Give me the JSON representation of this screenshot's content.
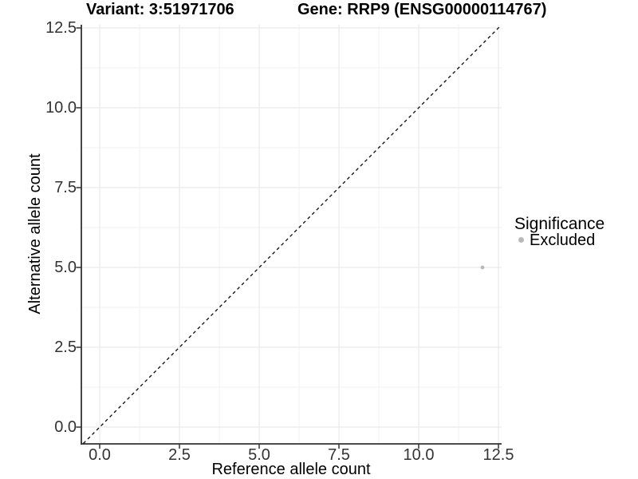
{
  "title": {
    "variant_part": "Variant: 3:51971706",
    "gene_part": "Gene: RRP9 (ENSG00000114767)"
  },
  "axes": {
    "x_label": "Reference allele count",
    "y_label": "Alternative allele count"
  },
  "legend": {
    "title": "Significance",
    "position": "right",
    "items": [
      {
        "label": "Excluded",
        "color": "#b9b9b9",
        "marker": "circle"
      }
    ]
  },
  "colors": {
    "background": "#ffffff",
    "point": "#b9b9b9",
    "axis_line": "#333333",
    "tick_text": "#333333",
    "grid_major": "#e6e6e6",
    "grid_minor": "#f2f2f2",
    "reference_line": "#000000"
  },
  "chart_data": {
    "type": "scatter",
    "title": "Variant: 3:51971706    Gene: RRP9 (ENSG00000114767)",
    "xlabel": "Reference allele count",
    "ylabel": "Alternative allele count",
    "xlim": [
      -0.625,
      12.625
    ],
    "ylim": [
      -0.625,
      12.625
    ],
    "x_ticks": [
      0.0,
      2.5,
      5.0,
      7.5,
      10.0,
      12.5
    ],
    "y_ticks": [
      0.0,
      2.5,
      5.0,
      7.5,
      10.0,
      12.5
    ],
    "x_tick_labels": [
      "0.0",
      "2.5",
      "5.0",
      "7.5",
      "10.0",
      "12.5"
    ],
    "y_tick_labels_top_to_bottom": [
      "12.5",
      "10.0",
      "7.5",
      "5.0",
      "2.5",
      "0.0"
    ],
    "grid": true,
    "minor_grid": true,
    "legend_position": "right",
    "series": [
      {
        "name": "Excluded",
        "color": "#b9b9b9",
        "points": [
          {
            "x": 12,
            "y": 5
          }
        ]
      }
    ],
    "reference_line": {
      "type": "identity",
      "slope": 1,
      "intercept": 0,
      "linetype": "dashed",
      "color": "#000000"
    }
  }
}
